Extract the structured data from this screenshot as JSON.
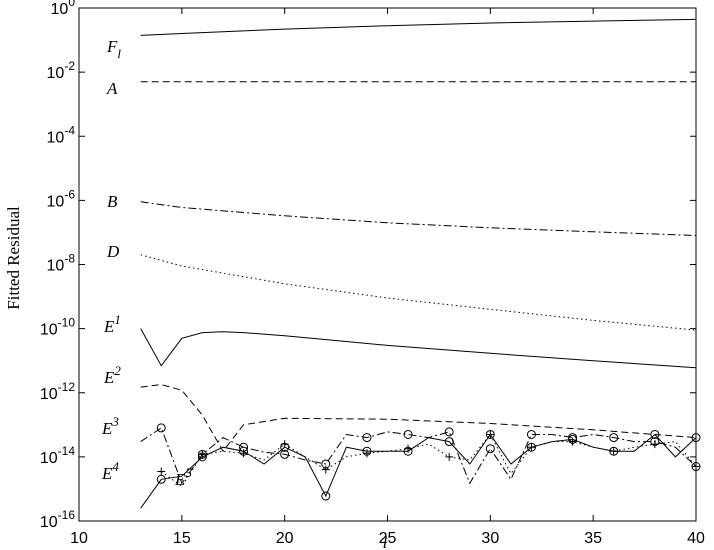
{
  "chart_data": {
    "type": "line",
    "title": "",
    "xlabel": "l",
    "ylabel": "Fitted Residual",
    "xlim": [
      10,
      40
    ],
    "ylim": [
      1e-16,
      1
    ],
    "yscale": "log",
    "grid": false,
    "legend": "none",
    "x_ticks": [
      "10",
      "15",
      "20",
      "25",
      "30",
      "35",
      "40"
    ],
    "y_ticks": [
      {
        "base": "10",
        "exp": "0"
      },
      {
        "base": "10",
        "exp": "-2"
      },
      {
        "base": "10",
        "exp": "-4"
      },
      {
        "base": "10",
        "exp": "-6"
      },
      {
        "base": "10",
        "exp": "-8"
      },
      {
        "base": "10",
        "exp": "-10"
      },
      {
        "base": "10",
        "exp": "-12"
      },
      {
        "base": "10",
        "exp": "-14"
      },
      {
        "base": "10",
        "exp": "-16"
      }
    ],
    "series": [
      {
        "label": {
          "text": "F",
          "sub": "l"
        },
        "style": "solid",
        "marker": "none",
        "x": [
          13,
          15,
          20,
          25,
          30,
          35,
          40
        ],
        "y": [
          0.14,
          0.16,
          0.22,
          0.28,
          0.34,
          0.39,
          0.44
        ]
      },
      {
        "label": {
          "text": "A",
          "sub": ""
        },
        "style": "dashed",
        "marker": "none",
        "x": [
          13,
          40
        ],
        "y": [
          0.005,
          0.005
        ]
      },
      {
        "label": {
          "text": "B",
          "sub": ""
        },
        "style": "dashdot",
        "marker": "none",
        "x": [
          13,
          15,
          20,
          25,
          30,
          35,
          40
        ],
        "y": [
          9e-07,
          6e-07,
          3.3e-07,
          2e-07,
          1.4e-07,
          1.05e-07,
          8e-08
        ]
      },
      {
        "label": {
          "text": "D",
          "sub": ""
        },
        "style": "dotted",
        "marker": "none",
        "x": [
          13,
          15,
          20,
          25,
          30,
          35,
          40
        ],
        "y": [
          2e-08,
          9e-09,
          2.5e-09,
          9e-10,
          4e-10,
          1.8e-10,
          9e-11
        ]
      },
      {
        "label": {
          "text": "E",
          "sup": "1"
        },
        "style": "solid",
        "marker": "none",
        "x": [
          13,
          14,
          15,
          16,
          17,
          18,
          20,
          25,
          30,
          35,
          40
        ],
        "y": [
          1e-10,
          7e-12,
          5e-11,
          7.5e-11,
          8e-11,
          7.5e-11,
          6e-11,
          3e-11,
          1.7e-11,
          1e-11,
          6e-12
        ]
      },
      {
        "label": {
          "text": "E",
          "sup": "2"
        },
        "style": "dashed",
        "marker": "none",
        "x": [
          13,
          14,
          15,
          16,
          17,
          18,
          20,
          25,
          30,
          35,
          38,
          40
        ],
        "y": [
          1.5e-12,
          1.8e-12,
          1.2e-12,
          2e-13,
          1.5e-14,
          1e-13,
          1.6e-13,
          1.5e-13,
          1.1e-13,
          7e-14,
          5e-14,
          4e-14
        ]
      },
      {
        "label": {
          "text": "E",
          "sup": "3"
        },
        "style": "dashdot",
        "marker": "circle",
        "x": [
          13,
          14,
          15,
          16,
          17,
          18,
          19,
          20,
          21,
          22,
          23,
          24,
          25,
          26,
          27,
          28,
          29,
          30,
          31,
          32,
          33,
          34,
          35,
          36,
          37,
          38,
          39,
          40
        ],
        "y": [
          3e-14,
          8e-14,
          1.5e-15,
          1.2e-14,
          4e-14,
          2e-14,
          1.4e-14,
          1.2e-14,
          8e-15,
          6e-15,
          5e-14,
          4e-14,
          6e-14,
          5e-14,
          4e-14,
          6e-14,
          1.5e-15,
          1.8e-14,
          2e-15,
          5e-14,
          5e-14,
          4e-14,
          5e-14,
          4e-14,
          3e-14,
          3e-14,
          2e-14,
          5e-15
        ]
      },
      {
        "label": {
          "text": "E",
          "sup": "4"
        },
        "style": "dotted",
        "marker": "plus",
        "x": [
          14,
          15,
          16,
          17,
          18,
          19,
          20,
          21,
          22,
          23,
          24,
          25,
          26,
          27,
          28,
          29,
          30,
          31,
          32,
          33,
          34,
          35,
          36,
          37,
          38,
          39,
          40
        ],
        "y": [
          3.5e-15,
          1.2e-15,
          1.2e-14,
          1.5e-14,
          1.3e-14,
          8e-15,
          2.5e-14,
          1e-14,
          4e-15,
          1e-14,
          1.3e-14,
          1.5e-14,
          1.8e-14,
          2.5e-14,
          1e-14,
          8e-15,
          5e-14,
          3e-15,
          2e-14,
          3e-14,
          3e-14,
          2e-14,
          1.5e-14,
          2e-14,
          2.5e-14,
          3e-14,
          5e-15
        ]
      },
      {
        "label": {
          "text": "E",
          "sup": "5"
        },
        "style": "solid",
        "marker": "circle",
        "x": [
          13,
          14,
          15,
          16,
          17,
          18,
          19,
          20,
          21,
          22,
          23,
          24,
          25,
          26,
          27,
          28,
          29,
          30,
          31,
          32,
          33,
          34,
          35,
          36,
          37,
          38,
          39,
          40
        ],
        "y": [
          2.5e-16,
          2e-15,
          2.5e-15,
          1e-14,
          2e-14,
          1.5e-14,
          6e-15,
          2e-14,
          1e-14,
          6e-16,
          2e-14,
          1.5e-14,
          1.5e-14,
          1.5e-14,
          4e-14,
          3e-14,
          6e-15,
          5e-14,
          6e-15,
          2e-14,
          3e-14,
          3.5e-14,
          2e-14,
          1.5e-14,
          1.5e-14,
          5e-14,
          1e-14,
          4e-14
        ]
      }
    ]
  }
}
